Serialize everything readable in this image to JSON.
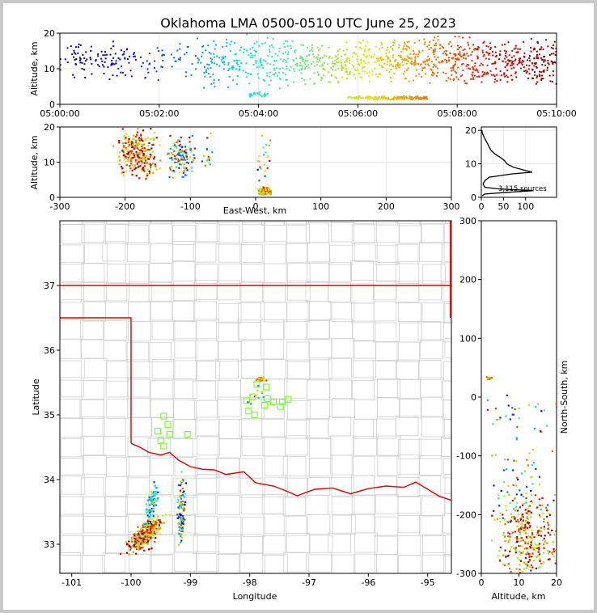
{
  "title": "Oklahoma LMA 0500-0510 UTC June 25, 2023",
  "chart_data": [
    {
      "panel": "altitude-vs-time",
      "type": "scatter",
      "xlabel": "",
      "ylabel": "Altitude, km",
      "x_tick_labels": [
        "05:00:00",
        "05:02:00",
        "05:04:00",
        "05:06:00",
        "05:08:00",
        "05:10:00"
      ],
      "xlim_minutes": [
        0,
        10
      ],
      "ylim": [
        0,
        20
      ],
      "y_ticks": [
        0,
        10,
        20
      ],
      "color_encoding": "time (blue early to red late)",
      "grid": true,
      "clusters": [
        {
          "t_min": 0.0,
          "t_max": 1.3,
          "alt_min": 6,
          "alt_max": 19,
          "count": 90
        },
        {
          "t_min": 1.3,
          "t_max": 2.9,
          "alt_min": 6,
          "alt_max": 19,
          "count": 70
        },
        {
          "t_min": 2.9,
          "t_max": 4.7,
          "alt_min": 4,
          "alt_max": 20,
          "count": 200
        },
        {
          "t_min": 3.8,
          "t_max": 4.2,
          "alt_min": 2,
          "alt_max": 3.5,
          "count": 25
        },
        {
          "t_min": 4.7,
          "t_max": 6.0,
          "alt_min": 5,
          "alt_max": 18,
          "count": 180
        },
        {
          "t_min": 6.0,
          "t_max": 7.3,
          "alt_min": 6,
          "alt_max": 19,
          "count": 200
        },
        {
          "t_min": 5.8,
          "t_max": 7.4,
          "alt_min": 1.2,
          "alt_max": 2.3,
          "count": 170
        },
        {
          "t_min": 7.3,
          "t_max": 8.7,
          "alt_min": 5,
          "alt_max": 20,
          "count": 230
        },
        {
          "t_min": 8.7,
          "t_max": 10.0,
          "alt_min": 5,
          "alt_max": 19,
          "count": 200
        }
      ]
    },
    {
      "panel": "altitude-vs-east-west",
      "type": "scatter",
      "xlabel": "East-West, km",
      "ylabel": "Altitude, km",
      "xlim": [
        -300,
        300
      ],
      "x_ticks": [
        -300,
        -200,
        -100,
        0,
        100,
        200,
        300
      ],
      "ylim": [
        0,
        20
      ],
      "y_ticks": [
        0,
        10,
        20
      ],
      "grid": true
    },
    {
      "panel": "altitude-histogram",
      "type": "line",
      "xlim": [
        0,
        170
      ],
      "x_ticks": [
        0,
        50,
        100
      ],
      "ylim": [
        0,
        21
      ],
      "y_ticks": [
        0,
        10,
        20
      ],
      "annotation": "3,115 sources",
      "profile": [
        {
          "alt": 0.5,
          "n": 2
        },
        {
          "alt": 1.0,
          "n": 8
        },
        {
          "alt": 1.5,
          "n": 60
        },
        {
          "alt": 2.0,
          "n": 118
        },
        {
          "alt": 2.5,
          "n": 40
        },
        {
          "alt": 3.0,
          "n": 8
        },
        {
          "alt": 4.0,
          "n": 4
        },
        {
          "alt": 5.0,
          "n": 8
        },
        {
          "alt": 6.0,
          "n": 18
        },
        {
          "alt": 7.0,
          "n": 70
        },
        {
          "alt": 7.5,
          "n": 115
        },
        {
          "alt": 8.0,
          "n": 100
        },
        {
          "alt": 9.0,
          "n": 72
        },
        {
          "alt": 10.0,
          "n": 58
        },
        {
          "alt": 11.0,
          "n": 52
        },
        {
          "alt": 12.0,
          "n": 42
        },
        {
          "alt": 13.0,
          "n": 30
        },
        {
          "alt": 14.0,
          "n": 22
        },
        {
          "alt": 15.0,
          "n": 18
        },
        {
          "alt": 16.0,
          "n": 14
        },
        {
          "alt": 17.0,
          "n": 10
        },
        {
          "alt": 18.0,
          "n": 6
        },
        {
          "alt": 19.0,
          "n": 3
        },
        {
          "alt": 20.0,
          "n": 1
        }
      ]
    },
    {
      "panel": "plan-view-map",
      "type": "scatter",
      "xlabel": "Longitude",
      "ylabel": "Latitude",
      "xlim": [
        -101.2,
        -94.6
      ],
      "x_ticks": [
        -101,
        -100,
        -99,
        -98,
        -97,
        -96,
        -95
      ],
      "ylim": [
        32.55,
        38.0
      ],
      "y_ticks": [
        33,
        34,
        35,
        36,
        37
      ],
      "stations": [
        [
          -97.88,
          35.47
        ],
        [
          -97.72,
          35.43
        ],
        [
          -97.95,
          35.28
        ],
        [
          -98.05,
          35.22
        ],
        [
          -97.7,
          35.25
        ],
        [
          -97.6,
          35.2
        ],
        [
          -97.45,
          35.2
        ],
        [
          -97.35,
          35.24
        ],
        [
          -97.75,
          35.15
        ],
        [
          -97.92,
          35.0
        ],
        [
          -97.48,
          35.13
        ],
        [
          -98.02,
          35.06
        ],
        [
          -99.45,
          34.98
        ],
        [
          -99.38,
          34.85
        ],
        [
          -99.55,
          34.75
        ],
        [
          -99.35,
          34.7
        ],
        [
          -99.05,
          34.7
        ],
        [
          -99.5,
          34.6
        ],
        [
          -99.45,
          34.52
        ]
      ]
    },
    {
      "panel": "north-south-vs-altitude",
      "type": "scatter",
      "xlabel": "Altitude, km",
      "ylabel": "North-South, km",
      "xlim": [
        0,
        20
      ],
      "x_ticks": [
        0,
        10,
        20
      ],
      "ylim": [
        -300,
        300
      ],
      "y_ticks": [
        -300,
        -200,
        -100,
        0,
        100,
        200,
        300
      ]
    }
  ]
}
